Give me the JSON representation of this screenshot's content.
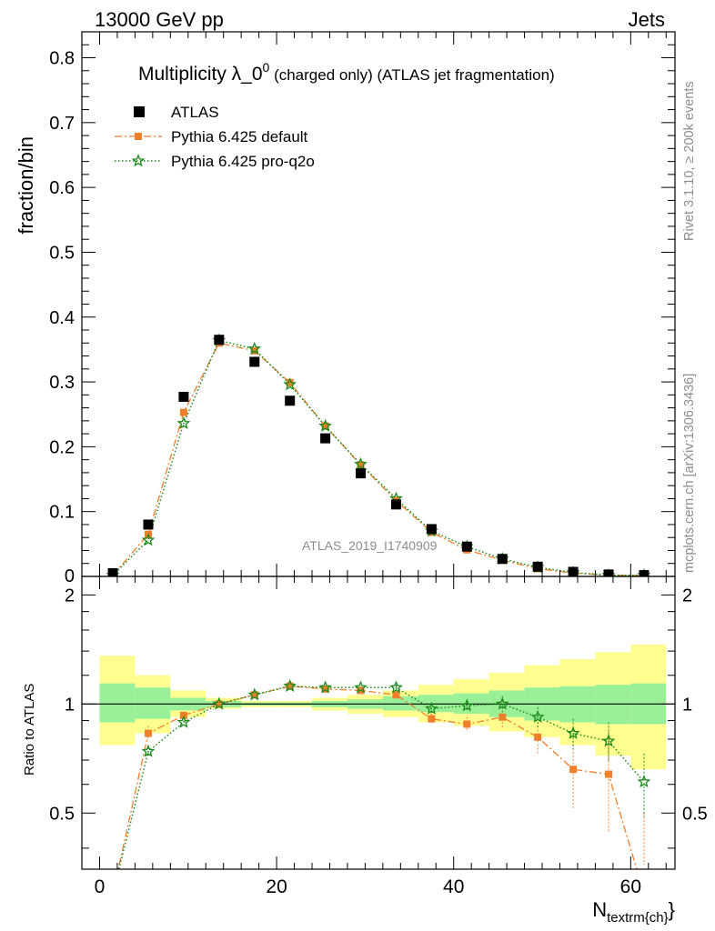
{
  "header": {
    "energy_label": "13000 GeV pp",
    "category_label": "Jets"
  },
  "side_labels": {
    "rivet": "Rivet 3.1.10, ≥ 200k events",
    "mcplots": "mcplots.cern.ch [arXiv:1306.3436]"
  },
  "chart_data": {
    "type": "scatter",
    "title_main": "Multiplicity λ_0",
    "title_sup": "0",
    "title_rest": " (charged only) (ATLAS jet fragmentation)",
    "watermark": "ATLAS_2019_I1740909",
    "xlabel_main": "N",
    "xlabel_sub": "textrm{ch}",
    "xlabel_close": "}",
    "ylabel": "fraction/bin",
    "ratio_ylabel": "Ratio to ATLAS",
    "xlim": [
      -2,
      65
    ],
    "ylim": [
      0,
      0.84
    ],
    "ratio_ylim": [
      0.35,
      2.25
    ],
    "x_ticks": [
      0,
      20,
      40,
      60
    ],
    "y_ticks": [
      0.1,
      0.2,
      0.3,
      0.4,
      0.5,
      0.6,
      0.7,
      0.8
    ],
    "y_tick_labels": [
      "0.1",
      "0.2",
      "0.3",
      "0.4",
      "0.5",
      "0.6",
      "0.7",
      "0.8"
    ],
    "y_zero_label": "0",
    "ratio_ticks": [
      0.5,
      1,
      2
    ],
    "ratio_tick_labels": [
      "0.5",
      "1",
      "2"
    ],
    "bin_edges": [
      0,
      4,
      8,
      12,
      16,
      20,
      24,
      28,
      32,
      36,
      40,
      44,
      48,
      52,
      56,
      60,
      64
    ],
    "x": [
      1.5,
      5.5,
      9.5,
      13.5,
      17.5,
      21.5,
      25.5,
      29.5,
      33.5,
      37.5,
      41.5,
      45.5,
      49.5,
      53.5,
      57.5,
      61.5
    ],
    "legend": [
      "ATLAS",
      "Pythia 6.425 default",
      "Pythia 6.425 pro-q2o"
    ],
    "colors": {
      "data": "#000000",
      "default": "#f07f2b",
      "pro_q2o": "#1a8a1a",
      "band_inner": "#99f099",
      "band_outer": "#ffff90"
    },
    "series": [
      {
        "name": "ATLAS",
        "values": [
          0.005,
          0.08,
          0.277,
          0.365,
          0.331,
          0.271,
          0.213,
          0.159,
          0.111,
          0.073,
          0.046,
          0.027,
          0.015,
          0.007,
          0.003,
          0.002
        ]
      },
      {
        "name": "Pythia 6.425 default",
        "values": [
          0.002,
          0.065,
          0.253,
          0.36,
          0.348,
          0.299,
          0.232,
          0.172,
          0.117,
          0.068,
          0.041,
          0.025,
          0.012,
          0.005,
          0.002,
          0.001
        ],
        "ratio": [
          0.3,
          0.83,
          0.93,
          1.0,
          1.06,
          1.12,
          1.1,
          1.09,
          1.06,
          0.91,
          0.88,
          0.92,
          0.81,
          0.66,
          0.64,
          0.3
        ],
        "ratio_err": [
          0,
          0.04,
          0.02,
          0.01,
          0.01,
          0.01,
          0.01,
          0.01,
          0.02,
          0.03,
          0.04,
          0.06,
          0.08,
          0.15,
          0.2,
          0.2
        ]
      },
      {
        "name": "Pythia 6.425 pro-q2o",
        "values": [
          0.002,
          0.056,
          0.236,
          0.364,
          0.351,
          0.296,
          0.232,
          0.173,
          0.12,
          0.07,
          0.046,
          0.027,
          0.014,
          0.006,
          0.002,
          0.002
        ],
        "ratio": [
          0.3,
          0.74,
          0.89,
          1.0,
          1.06,
          1.12,
          1.11,
          1.11,
          1.11,
          0.97,
          0.99,
          1.0,
          0.92,
          0.83,
          0.79,
          0.61
        ],
        "ratio_err": [
          0,
          0.02,
          0.01,
          0.01,
          0.01,
          0.01,
          0.01,
          0.01,
          0.02,
          0.03,
          0.03,
          0.05,
          0.06,
          0.08,
          0.1,
          0.12
        ]
      }
    ],
    "band_inner": [
      [
        0.89,
        1.14
      ],
      [
        0.91,
        1.11
      ],
      [
        0.96,
        1.04
      ],
      [
        0.98,
        1.02
      ],
      [
        0.99,
        1.01
      ],
      [
        0.99,
        1.01
      ],
      [
        0.98,
        1.02
      ],
      [
        0.97,
        1.03
      ],
      [
        0.96,
        1.05
      ],
      [
        0.95,
        1.06
      ],
      [
        0.94,
        1.07
      ],
      [
        0.92,
        1.09
      ],
      [
        0.9,
        1.11
      ],
      [
        0.89,
        1.12
      ],
      [
        0.88,
        1.13
      ],
      [
        0.88,
        1.14
      ]
    ],
    "band_outer": [
      [
        0.77,
        1.36
      ],
      [
        0.83,
        1.2
      ],
      [
        0.92,
        1.09
      ],
      [
        0.97,
        1.04
      ],
      [
        0.98,
        1.02
      ],
      [
        0.98,
        1.02
      ],
      [
        0.96,
        1.04
      ],
      [
        0.94,
        1.06
      ],
      [
        0.92,
        1.09
      ],
      [
        0.89,
        1.13
      ],
      [
        0.87,
        1.17
      ],
      [
        0.84,
        1.22
      ],
      [
        0.81,
        1.28
      ],
      [
        0.77,
        1.33
      ],
      [
        0.72,
        1.39
      ],
      [
        0.66,
        1.46
      ]
    ]
  }
}
